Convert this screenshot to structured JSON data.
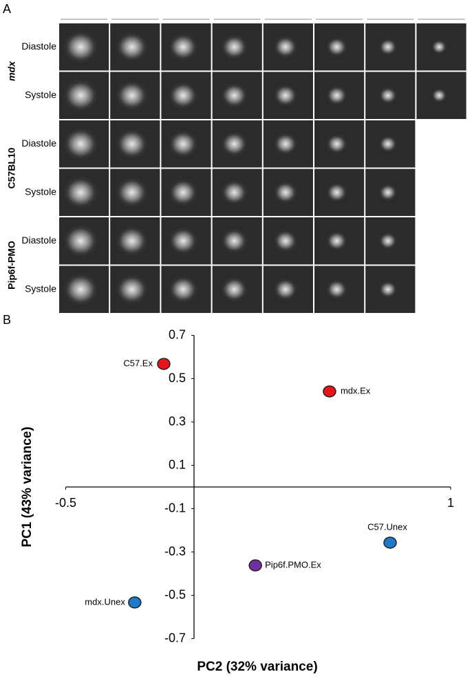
{
  "panel_a": {
    "label": "A",
    "groups": [
      {
        "name": "mdx",
        "rows": [
          "Diastole",
          "Systole"
        ]
      },
      {
        "name": "C57BL10",
        "rows": [
          "Diastole",
          "Systole"
        ]
      },
      {
        "name": "Pip6f-PMO",
        "rows": [
          "Diastole",
          "Systole"
        ]
      }
    ]
  },
  "chart_data": {
    "type": "scatter",
    "panel_label": "B",
    "x_label": "PC2 (32%  variance)",
    "y_label": "PC1 (43%  variance)",
    "xlim": [
      -0.5,
      1
    ],
    "xticks": [
      -0.5,
      1
    ],
    "ylim": [
      -0.7,
      0.7
    ],
    "yticks": [
      0.7,
      0.5,
      0.3,
      0.1,
      -0.1,
      -0.3,
      -0.5,
      -0.7
    ],
    "series": [
      {
        "name": "C57.Ex",
        "color": "#e8141b",
        "x": [
          -0.118
        ],
        "values": [
          0.568
        ]
      },
      {
        "name": "mdx.Ex",
        "color": "#e8141b",
        "x": [
          0.528
        ],
        "values": [
          0.441
        ]
      },
      {
        "name": "C57.Unex",
        "color": "#1f78c8",
        "x": [
          0.764
        ],
        "values": [
          -0.257
        ]
      },
      {
        "name": "Pip6f.PMO.Ex",
        "color": "#7030a0",
        "x": [
          0.239
        ],
        "values": [
          -0.362
        ]
      },
      {
        "name": "mdx.Unex",
        "color": "#1f78c8",
        "x": [
          -0.231
        ],
        "values": [
          -0.533
        ]
      }
    ]
  }
}
